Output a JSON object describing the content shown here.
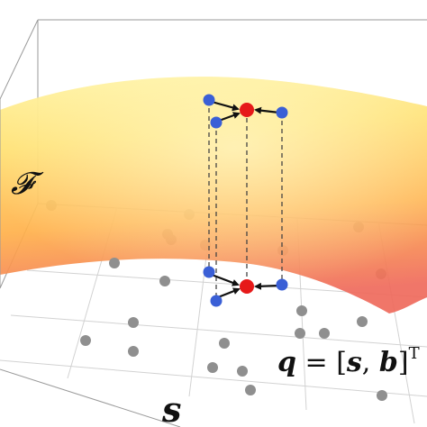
{
  "figure": {
    "surface_label": "𝓕",
    "axis_label": "s",
    "equation": {
      "lhs": "q",
      "eq": " = [",
      "s": "s",
      "comma": ", ",
      "b": "b",
      "close": "]",
      "sup": "T"
    }
  },
  "colors": {
    "surface_top": "#ffec7a",
    "surface_mid": "#ffc24a",
    "surface_bottom": "#f06a5a",
    "gray_point": "#8f8f8f",
    "blue_point": "#3a5fd6",
    "red_point": "#e61919",
    "box_line": "#555555"
  }
}
